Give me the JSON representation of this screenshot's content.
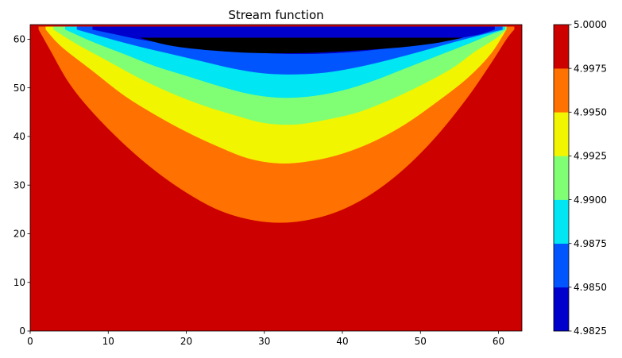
{
  "chart_data": {
    "type": "contourf",
    "title": "Stream function",
    "xlabel": "",
    "ylabel": "",
    "xlim": [
      0,
      63
    ],
    "ylim": [
      0,
      63
    ],
    "x_ticks": [
      0,
      10,
      20,
      30,
      40,
      50,
      60
    ],
    "y_ticks": [
      0,
      10,
      20,
      30,
      40,
      50,
      60
    ],
    "grid": false,
    "colormap": "jet",
    "levels": [
      4.9825,
      4.985,
      4.9875,
      4.99,
      4.9925,
      4.995,
      4.9975,
      5.0
    ],
    "colorbar_tick_labels": [
      "4.9825",
      "4.9850",
      "4.9875",
      "4.9900",
      "4.9925",
      "4.9950",
      "4.9975",
      "5.0000"
    ],
    "band_colors": [
      "#0000cd",
      "#0055ff",
      "#00e6f2",
      "#80ff74",
      "#f2f500",
      "#ff7100",
      "#cd0000"
    ],
    "contours": [
      {
        "level": 4.9975,
        "x": [
          1.1,
          2.5,
          5,
          8,
          12,
          16,
          20,
          24,
          28,
          32,
          36,
          40,
          44,
          48,
          52,
          56,
          59,
          61,
          62
        ],
        "y": [
          62,
          58,
          51,
          45,
          38.5,
          33,
          28.5,
          25,
          23,
          22.3,
          23,
          25,
          28.5,
          33.5,
          40,
          48,
          55,
          60,
          62
        ]
      },
      {
        "level": 4.995,
        "x": [
          2,
          4,
          8,
          12,
          16,
          20,
          24,
          28,
          32,
          36,
          40,
          44,
          48,
          52,
          56,
          59,
          61
        ],
        "y": [
          62,
          58.5,
          53.5,
          48.5,
          44.5,
          41,
          38,
          35.5,
          34.5,
          35,
          36.5,
          39,
          42.5,
          47,
          52,
          57,
          62
        ]
      },
      {
        "level": 4.9925,
        "x": [
          3,
          6,
          10,
          14,
          18,
          22,
          26,
          30,
          34,
          38,
          42,
          46,
          50,
          54,
          57,
          59.5,
          61
        ],
        "y": [
          62,
          59,
          55.5,
          52,
          49,
          46.5,
          44.5,
          42.8,
          42.5,
          43.5,
          45,
          47.5,
          50.5,
          54,
          57.5,
          60,
          62
        ]
      },
      {
        "level": 4.99,
        "x": [
          4.5,
          8,
          12,
          16,
          20,
          24,
          28,
          32,
          36,
          40,
          44,
          48,
          52,
          56,
          59,
          60.8
        ],
        "y": [
          62,
          59.5,
          57,
          54.5,
          52.5,
          50.5,
          48.8,
          48,
          48.3,
          49.5,
          51.5,
          54,
          56.5,
          59,
          61,
          62
        ]
      },
      {
        "level": 4.9875,
        "x": [
          6,
          10,
          14,
          18,
          22,
          26,
          30,
          34,
          38,
          42,
          46,
          50,
          54,
          58,
          60.5
        ],
        "y": [
          62,
          60.2,
          58.5,
          57,
          55.5,
          54,
          53,
          52.8,
          53.2,
          54.3,
          55.8,
          57.5,
          59.3,
          61,
          62
        ]
      },
      {
        "level": 4.985,
        "x": [
          8,
          11,
          14,
          18,
          22,
          26,
          30,
          34,
          38,
          42,
          46,
          50,
          54,
          57.5,
          59.5
        ],
        "y": [
          62,
          61,
          60,
          59,
          58.3,
          57.7,
          57.2,
          57,
          57.1,
          57.5,
          58.2,
          59,
          60,
          61,
          62
        ]
      },
      {
        "level": 4.9825,
        "x": [
          14,
          17,
          20,
          24,
          28,
          32,
          36,
          40,
          44,
          48,
          52,
          55.5
        ],
        "y": [
          60.3,
          59,
          58.2,
          57.6,
          57.2,
          57.1,
          57.2,
          57.5,
          57.9,
          58.4,
          59.2,
          60.3
        ]
      }
    ]
  }
}
